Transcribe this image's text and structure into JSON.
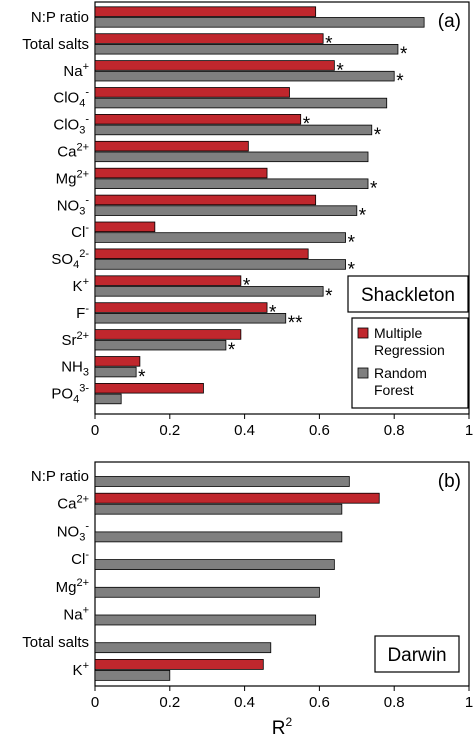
{
  "legend_items": {
    "mr": [
      "Multiple",
      "Regression"
    ],
    "rf": [
      "Random",
      "Forest"
    ]
  },
  "colors": {
    "mr": "#c0272d",
    "rf": "#7f7f7f"
  },
  "chart_data": [
    {
      "type": "bar",
      "orientation": "horizontal",
      "panel_label": "(a)",
      "site": "Shackleton",
      "xlim": [
        0,
        1
      ],
      "xticks": [
        "0",
        "0.2",
        "0.4",
        "0.6",
        "0.8",
        "1"
      ],
      "categories": [
        {
          "base": "N:P ratio",
          "script": "",
          "scriptType": "sup"
        },
        {
          "base": "Total salts",
          "script": "",
          "scriptType": "sup"
        },
        {
          "base": "Na",
          "script": "+",
          "scriptType": "sup"
        },
        {
          "base": "ClO",
          "script": "4",
          "scriptType": "sub",
          "sup2": "-"
        },
        {
          "base": "ClO",
          "script": "3",
          "scriptType": "sub",
          "sup2": "-"
        },
        {
          "base": "Ca",
          "script": "2+",
          "scriptType": "sup"
        },
        {
          "base": "Mg",
          "script": "2+",
          "scriptType": "sup"
        },
        {
          "base": "NO",
          "script": "3",
          "scriptType": "sub",
          "sup2": "-"
        },
        {
          "base": "Cl",
          "script": "-",
          "scriptType": "sup"
        },
        {
          "base": "SO",
          "script": "4",
          "scriptType": "sub",
          "sup2": "2-"
        },
        {
          "base": "K",
          "script": "+",
          "scriptType": "sup"
        },
        {
          "base": "F",
          "script": "-",
          "scriptType": "sup"
        },
        {
          "base": "Sr",
          "script": "2+",
          "scriptType": "sup"
        },
        {
          "base": "NH",
          "script": "3",
          "scriptType": "sub"
        },
        {
          "base": "PO",
          "script": "4",
          "scriptType": "sub",
          "sup2": "3-"
        }
      ],
      "series": [
        {
          "name": "Multiple Regression",
          "values": [
            0.59,
            0.61,
            0.64,
            0.52,
            0.55,
            0.41,
            0.46,
            0.59,
            0.16,
            0.57,
            0.39,
            0.46,
            0.39,
            0.12,
            0.29
          ],
          "marks": [
            "",
            "*",
            "*",
            "",
            "*",
            "",
            "",
            "",
            "",
            "",
            "*",
            "*",
            "",
            "",
            ""
          ]
        },
        {
          "name": "Random Forest",
          "values": [
            0.88,
            0.81,
            0.8,
            0.78,
            0.74,
            0.73,
            0.73,
            0.7,
            0.67,
            0.67,
            0.61,
            0.51,
            0.35,
            0.11,
            0.07
          ],
          "marks": [
            "",
            "*",
            "*",
            "",
            "*",
            "",
            "*",
            "*",
            "*",
            "*",
            "*",
            "**",
            "*",
            "*",
            ""
          ]
        }
      ]
    },
    {
      "type": "bar",
      "orientation": "horizontal",
      "panel_label": "(b)",
      "site": "Darwin",
      "xlim": [
        0,
        1
      ],
      "xticks": [
        "0",
        "0.2",
        "0.4",
        "0.6",
        "0.8",
        "1"
      ],
      "xlabel": {
        "base": "R",
        "sup": "2"
      },
      "categories": [
        {
          "base": "N:P ratio",
          "script": "",
          "scriptType": "sup"
        },
        {
          "base": "Ca",
          "script": "2+",
          "scriptType": "sup"
        },
        {
          "base": "NO",
          "script": "3",
          "scriptType": "sub",
          "sup2": "-"
        },
        {
          "base": "Cl",
          "script": "-",
          "scriptType": "sup"
        },
        {
          "base": "Mg",
          "script": "2+",
          "scriptType": "sup"
        },
        {
          "base": "Na",
          "script": "+",
          "scriptType": "sup"
        },
        {
          "base": "Total salts",
          "script": "",
          "scriptType": "sup"
        },
        {
          "base": "K",
          "script": "+",
          "scriptType": "sup"
        }
      ],
      "series": [
        {
          "name": "Multiple Regression",
          "values": [
            null,
            0.76,
            null,
            null,
            null,
            null,
            null,
            0.45
          ],
          "marks": [
            "",
            "",
            "",
            "",
            "",
            "",
            "",
            ""
          ]
        },
        {
          "name": "Random Forest",
          "values": [
            0.68,
            0.66,
            0.66,
            0.64,
            0.6,
            0.59,
            0.47,
            0.2
          ],
          "marks": [
            "",
            "",
            "",
            "",
            "",
            "",
            "",
            ""
          ]
        }
      ]
    }
  ]
}
